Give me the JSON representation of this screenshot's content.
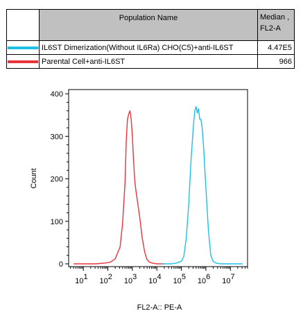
{
  "legend": {
    "header_name": "Population Name",
    "header_median": "Median , FL2-A",
    "rows": [
      {
        "name": "IL6ST Dimerization(Without IL6Ra) CHO(C5)+anti-IL6ST",
        "median": "4.47E5",
        "color": "#1ec0e8"
      },
      {
        "name": "Parental Cell+anti-IL6ST",
        "median": "966",
        "color": "#e8343a"
      }
    ]
  },
  "chart_data": {
    "type": "line",
    "xlabel": "FL2-A:: PE-A",
    "ylabel": "Count",
    "x_scale": "log",
    "x_tick_labels": [
      {
        "base": "10",
        "exp": "1"
      },
      {
        "base": "10",
        "exp": "2"
      },
      {
        "base": "10",
        "exp": "3"
      },
      {
        "base": "10",
        "exp": "4"
      },
      {
        "base": "10",
        "exp": "5"
      },
      {
        "base": "10",
        "exp": "6"
      },
      {
        "base": "10",
        "exp": "7"
      }
    ],
    "ylim": [
      0,
      410
    ],
    "y_ticks": [
      0,
      100,
      200,
      300,
      400
    ],
    "series": [
      {
        "name": "Parental Cell+anti-IL6ST",
        "color": "#e8343a",
        "x": [
          0.6,
          1.0,
          1.5,
          1.9,
          2.1,
          2.3,
          2.5,
          2.6,
          2.7,
          2.75,
          2.8,
          2.85,
          2.9,
          2.95,
          3.0,
          3.05,
          3.1,
          3.15,
          3.2,
          3.3,
          3.4,
          3.5,
          3.6,
          3.7,
          3.8,
          3.9,
          4.0,
          4.3
        ],
        "y": [
          0,
          0,
          0,
          2,
          4,
          12,
          40,
          95,
          190,
          290,
          340,
          352,
          360,
          342,
          300,
          240,
          195,
          170,
          150,
          110,
          62,
          28,
          10,
          4,
          2,
          1,
          0,
          0
        ]
      },
      {
        "name": "IL6ST Dimerization(Without IL6Ra) CHO(C5)+anti-IL6ST",
        "color": "#1ec0e8",
        "x": [
          4.2,
          4.6,
          4.8,
          5.0,
          5.1,
          5.2,
          5.3,
          5.4,
          5.5,
          5.55,
          5.6,
          5.65,
          5.7,
          5.75,
          5.8,
          5.85,
          5.9,
          6.0,
          6.1,
          6.2,
          6.3,
          6.4,
          6.6,
          6.8,
          7.5
        ],
        "y": [
          0,
          0,
          2,
          6,
          18,
          60,
          140,
          250,
          330,
          360,
          370,
          355,
          365,
          340,
          340,
          320,
          280,
          180,
          80,
          20,
          6,
          2,
          0,
          0,
          0
        ]
      }
    ]
  }
}
